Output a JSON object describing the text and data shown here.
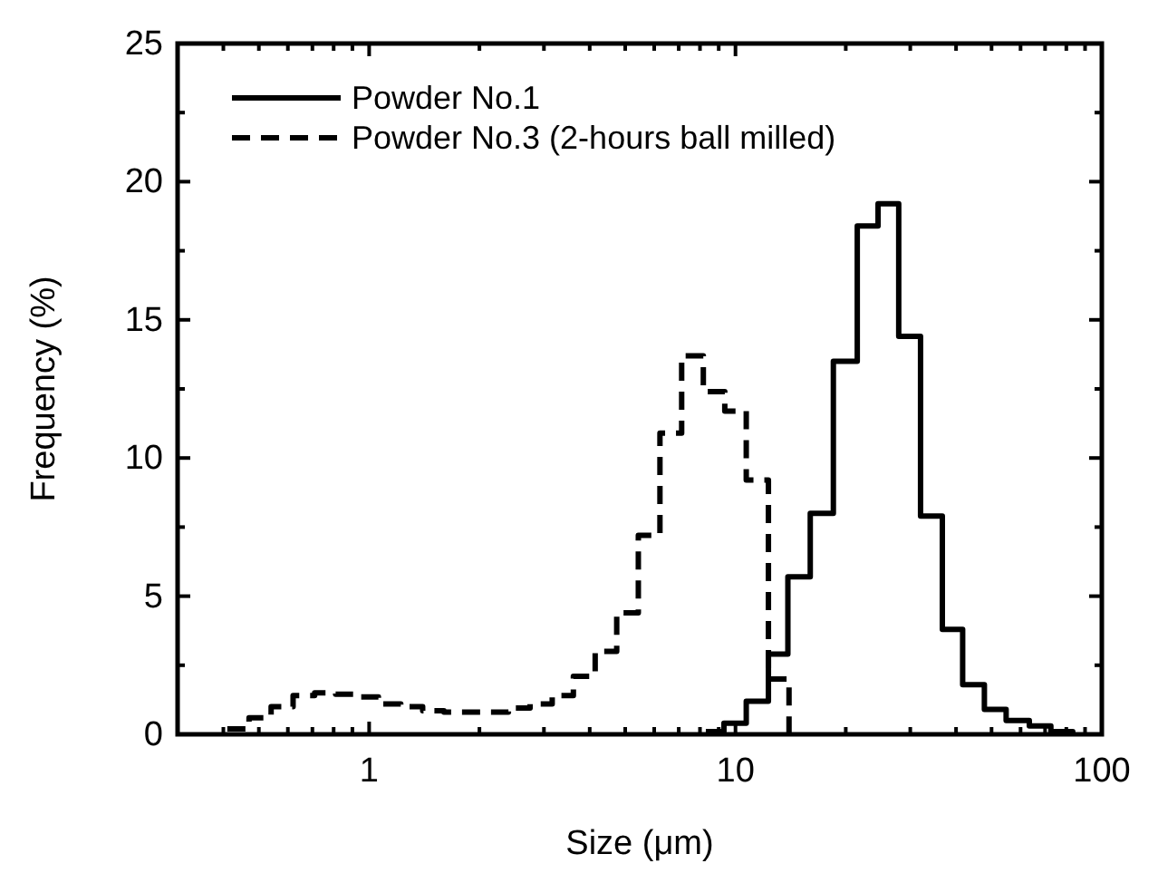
{
  "chart_data": {
    "type": "step",
    "xlabel": "Size (μm)",
    "ylabel": "Frequency (%)",
    "log": "x",
    "legend": "top left",
    "grid": false,
    "xlim": [
      0.3,
      100
    ],
    "ylim": [
      0,
      25
    ],
    "xticks": [
      {
        "value": 0.3,
        "label": null
      },
      {
        "value": 0.4,
        "label": null
      },
      {
        "value": 0.5,
        "label": null
      },
      {
        "value": 0.6,
        "label": null
      },
      {
        "value": 0.7,
        "label": null
      },
      {
        "value": 0.8,
        "label": null
      },
      {
        "value": 0.9,
        "label": null
      },
      1,
      {
        "value": 2,
        "label": null
      },
      {
        "value": 3,
        "label": null
      },
      {
        "value": 4,
        "label": null
      },
      {
        "value": 5,
        "label": null
      },
      {
        "value": 6,
        "label": null
      },
      {
        "value": 7,
        "label": null
      },
      {
        "value": 8,
        "label": null
      },
      {
        "value": 9,
        "label": null
      },
      10,
      {
        "value": 20,
        "label": null
      },
      {
        "value": 30,
        "label": null
      },
      {
        "value": 40,
        "label": null
      },
      {
        "value": 50,
        "label": null
      },
      {
        "value": 60,
        "label": null
      },
      {
        "value": 70,
        "label": null
      },
      {
        "value": 80,
        "label": null
      },
      {
        "value": 90,
        "label": null
      },
      100
    ],
    "yticks": [
      0,
      {
        "value": 2.5,
        "label": null
      },
      5,
      {
        "value": 7.5,
        "label": null
      },
      10,
      {
        "value": 12.5,
        "label": null
      },
      15,
      {
        "value": 17.5,
        "label": null
      },
      20,
      {
        "value": 22.5,
        "label": null
      },
      25
    ],
    "series": [
      {
        "name": "Powder No.1",
        "color": "#000000",
        "line_style": "solid",
        "x": [
          8.3,
          9.3,
          10.7,
          12.3,
          13.9,
          16.0,
          18.5,
          21.5,
          24.5,
          27.9,
          32.0,
          36.7,
          41.7,
          47.8,
          54.8,
          63.4,
          72.6,
          83.3
        ],
        "values": [
          0.1,
          0.4,
          1.2,
          2.9,
          5.7,
          8.0,
          13.5,
          18.4,
          19.2,
          14.4,
          7.9,
          3.8,
          1.8,
          0.9,
          0.5,
          0.3,
          0.1,
          0
        ]
      },
      {
        "name": "Powder No.3 (2-hours ball milled)",
        "color": "#000000",
        "line_style": "dashed",
        "x": [
          0.41,
          0.47,
          0.54,
          0.62,
          0.71,
          0.81,
          0.93,
          1.06,
          1.22,
          1.4,
          1.6,
          1.83,
          2.1,
          2.4,
          2.75,
          3.16,
          3.61,
          4.14,
          4.74,
          5.43,
          6.22,
          7.13,
          8.17,
          9.35,
          10.7,
          12.3,
          14.0
        ],
        "values": [
          0.2,
          0.6,
          1.0,
          1.4,
          1.5,
          1.45,
          1.35,
          1.1,
          1.0,
          0.85,
          0.8,
          0.8,
          0.8,
          0.95,
          1.1,
          1.4,
          2.1,
          3.0,
          4.4,
          7.2,
          10.9,
          13.7,
          12.4,
          11.7,
          9.2,
          2.0,
          0
        ]
      }
    ]
  }
}
